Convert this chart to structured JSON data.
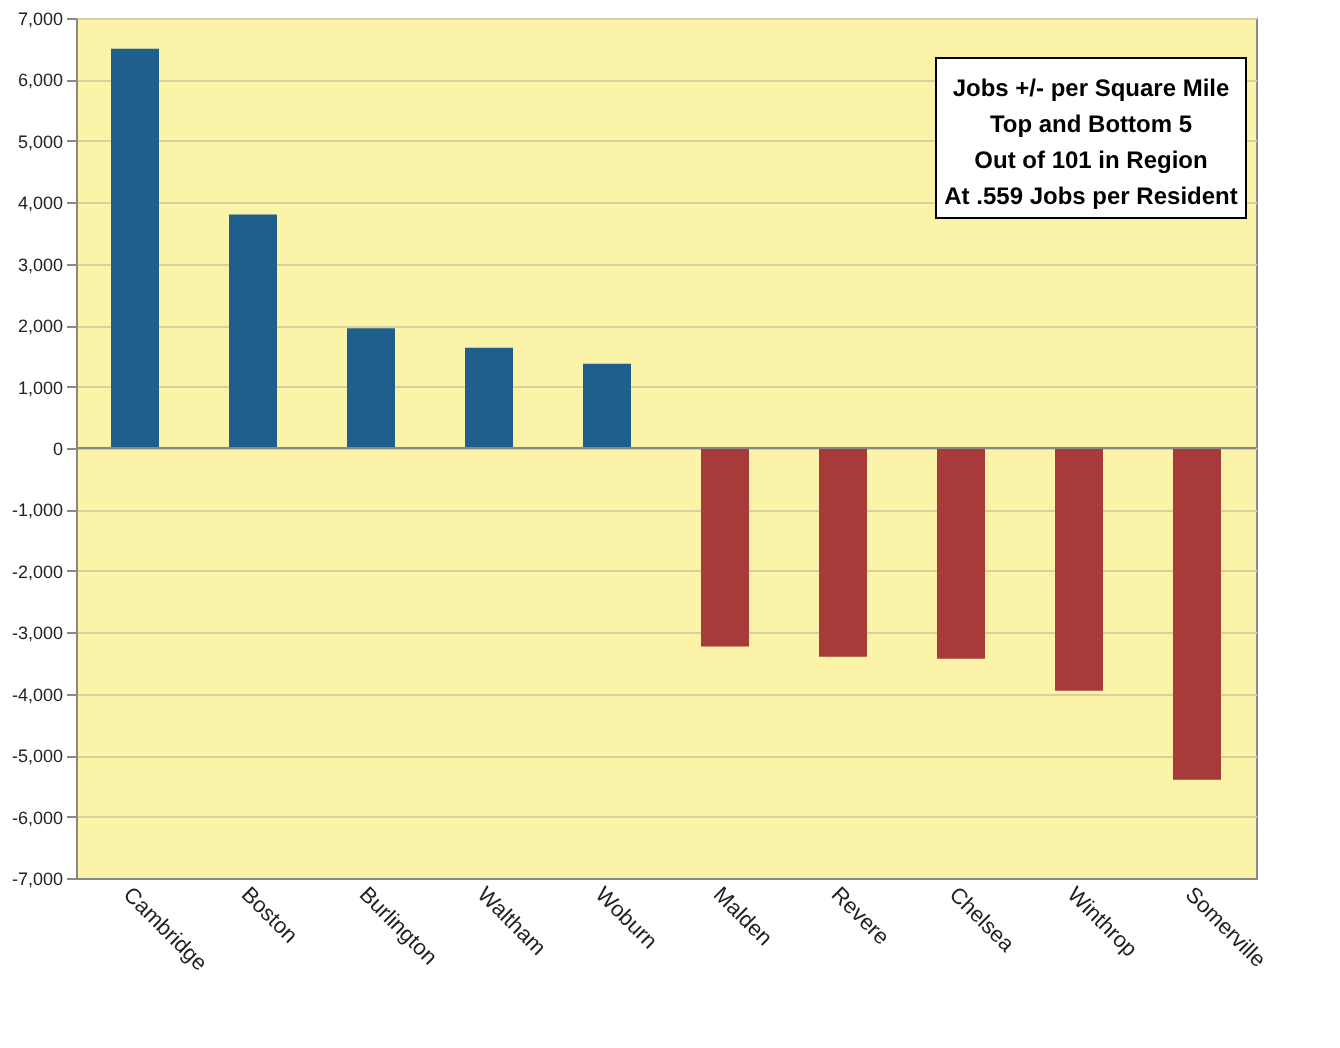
{
  "chart_data": {
    "type": "bar",
    "categories": [
      "Cambridge",
      "Boston",
      "Burlington",
      "Waltham",
      "Woburn",
      "Malden",
      "Revere",
      "Chelsea",
      "Winthrop",
      "Somerville"
    ],
    "values": [
      6500,
      3800,
      1950,
      1630,
      1370,
      -3230,
      -3400,
      -3430,
      -3950,
      -5400
    ],
    "colors": [
      "#1f5f8b",
      "#1f5f8b",
      "#1f5f8b",
      "#1f5f8b",
      "#1f5f8b",
      "#a83a3a",
      "#a83a3a",
      "#a83a3a",
      "#a83a3a",
      "#a83a3a"
    ],
    "ylim": [
      -7000,
      7000
    ],
    "yticks": [
      {
        "value": -7000,
        "label": "-7,000"
      },
      {
        "value": -6000,
        "label": "-6,000"
      },
      {
        "value": -5000,
        "label": "-5,000"
      },
      {
        "value": -4000,
        "label": "-4,000"
      },
      {
        "value": -3000,
        "label": "-3,000"
      },
      {
        "value": -2000,
        "label": "-2,000"
      },
      {
        "value": -1000,
        "label": "-1,000"
      },
      0,
      {
        "value": 1000,
        "label": "1,000"
      },
      {
        "value": 2000,
        "label": "2,000"
      },
      {
        "value": 3000,
        "label": "3,000"
      },
      {
        "value": 4000,
        "label": "4,000"
      },
      {
        "value": 5000,
        "label": "5,000"
      },
      {
        "value": 6000,
        "label": "6,000"
      },
      {
        "value": 7000,
        "label": "7,000"
      }
    ],
    "grid": "y",
    "annotations": [
      "Jobs +/- per Square Mile",
      "Top and Bottom 5",
      "Out of 101 in Region",
      "At .559 Jobs per Resident"
    ]
  }
}
